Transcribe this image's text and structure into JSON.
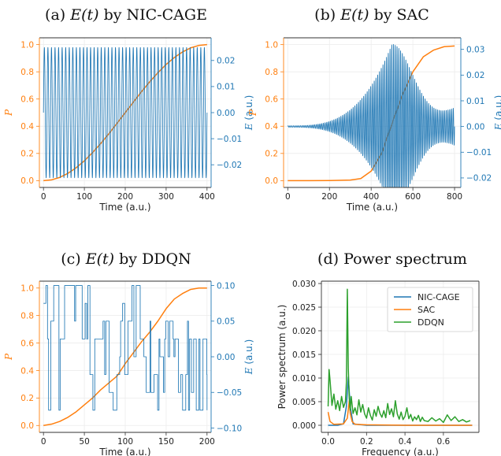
{
  "colors": {
    "p_axis": "#ff7f0e",
    "e_axis": "#1f77b4",
    "nic": "#1f77b4",
    "sac": "#ff7f0e",
    "ddqn": "#2ca02c"
  },
  "chart_data": [
    {
      "id": "a",
      "type": "line",
      "title_prefix": "(a) ",
      "title_var": "E(t)",
      "title_suffix": " by NIC-CAGE",
      "xlabel": "Time (a.u.)",
      "ylabel_left": "P",
      "ylabel_right": "E (a.u.)",
      "xlim": [
        -10,
        410
      ],
      "ylim_left": [
        -0.05,
        1.05
      ],
      "ylim_right": [
        -0.0287,
        0.0287
      ],
      "xticks": [
        0,
        100,
        200,
        300,
        400
      ],
      "yticks_left": [
        0.0,
        0.2,
        0.4,
        0.6,
        0.8,
        1.0
      ],
      "yticks_right": [
        -0.02,
        -0.01,
        0.0,
        0.01,
        0.02
      ],
      "grid": true,
      "series": [
        {
          "axis": "left",
          "color_key": "p_axis",
          "x": [
            0,
            20,
            40,
            60,
            80,
            100,
            120,
            140,
            160,
            180,
            200,
            220,
            240,
            260,
            280,
            300,
            320,
            340,
            360,
            380,
            400
          ],
          "y": [
            0.0,
            0.006,
            0.024,
            0.054,
            0.095,
            0.146,
            0.206,
            0.273,
            0.345,
            0.422,
            0.5,
            0.578,
            0.655,
            0.727,
            0.794,
            0.854,
            0.905,
            0.946,
            0.976,
            0.994,
            1.0
          ]
        },
        {
          "axis": "right",
          "color_key": "e_axis",
          "x": [
            0,
            400
          ],
          "amplitude": 0.025,
          "cycles": 46,
          "envelope": "constant"
        }
      ]
    },
    {
      "id": "b",
      "type": "line",
      "title_prefix": "(b) ",
      "title_var": "E(t)",
      "title_suffix": " by SAC",
      "xlabel": "Time (a.u.)",
      "ylabel_left": "P",
      "ylabel_right": "E (a.u.)",
      "xlim": [
        -20,
        830
      ],
      "ylim_left": [
        -0.05,
        1.05
      ],
      "ylim_right": [
        -0.0237,
        0.0345
      ],
      "xticks": [
        0,
        200,
        400,
        600,
        800
      ],
      "yticks_left": [
        0.0,
        0.2,
        0.4,
        0.6,
        0.8,
        1.0
      ],
      "yticks_right": [
        -0.02,
        -0.01,
        0.0,
        0.01,
        0.02,
        0.03
      ],
      "grid": true,
      "series": [
        {
          "axis": "left",
          "color_key": "p_axis",
          "x": [
            0,
            100,
            200,
            300,
            350,
            400,
            450,
            500,
            550,
            600,
            650,
            700,
            750,
            800
          ],
          "y": [
            0.0,
            0.0,
            0.001,
            0.004,
            0.015,
            0.07,
            0.2,
            0.42,
            0.63,
            0.8,
            0.91,
            0.96,
            0.985,
            0.99
          ]
        },
        {
          "axis": "right",
          "color_key": "e_axis",
          "x": [
            0,
            800
          ],
          "amplitude_peak": 0.032,
          "peak_at": 500,
          "amplitude_start": 0.0003,
          "amplitude_end": 0.007,
          "cycles": 95,
          "envelope": "gaussian"
        }
      ]
    },
    {
      "id": "c",
      "type": "line",
      "title_prefix": "(c) ",
      "title_var": "E(t)",
      "title_suffix": " by DDQN",
      "xlabel": "Time (a.u.)",
      "ylabel_left": "P",
      "ylabel_right": "E (a.u.)",
      "xlim": [
        -5,
        205
      ],
      "ylim_left": [
        -0.05,
        1.05
      ],
      "ylim_right": [
        -0.1061,
        0.1061
      ],
      "xticks": [
        0,
        50,
        100,
        150,
        200
      ],
      "yticks_left": [
        0.0,
        0.2,
        0.4,
        0.6,
        0.8,
        1.0
      ],
      "yticks_right": [
        -0.1,
        -0.05,
        0.0,
        0.05,
        0.1
      ],
      "grid": true,
      "series": [
        {
          "axis": "left",
          "color_key": "p_axis",
          "x": [
            0,
            10,
            20,
            30,
            40,
            50,
            60,
            70,
            80,
            90,
            100,
            110,
            120,
            130,
            140,
            150,
            160,
            170,
            180,
            190,
            200
          ],
          "y": [
            0.0,
            0.01,
            0.03,
            0.06,
            0.1,
            0.15,
            0.2,
            0.26,
            0.31,
            0.36,
            0.45,
            0.53,
            0.61,
            0.68,
            0.76,
            0.85,
            0.92,
            0.96,
            0.99,
            1.0,
            1.0
          ]
        },
        {
          "axis": "right",
          "color_key": "e_axis",
          "x": [
            0,
            200
          ],
          "levels": [
            0.1,
            0.075,
            0.05,
            0.025,
            0.0,
            -0.025,
            -0.05,
            -0.075
          ],
          "type": "piecewise-constant"
        }
      ]
    },
    {
      "id": "d",
      "type": "line",
      "title_prefix": "(d) Power spectrum",
      "title_var": "",
      "title_suffix": "",
      "xlabel": "Frequency (a.u.)",
      "ylabel_left": "Power spectrum (a.u.)",
      "ylabel_right": "",
      "xlim": [
        -0.035,
        0.785
      ],
      "ylim_left": [
        -0.0015,
        0.0305
      ],
      "ylim_right": [
        0,
        1
      ],
      "xticks": [
        0.0,
        0.2,
        0.4,
        0.6
      ],
      "yticks_left": [
        0.0,
        0.005,
        0.01,
        0.015,
        0.02,
        0.025,
        0.03
      ],
      "yticks_right": [],
      "legend": "top-right",
      "grid": true,
      "series": [
        {
          "name": "NIC-CAGE",
          "color_key": "nic",
          "x": [
            0.0,
            0.05,
            0.08,
            0.095,
            0.105,
            0.115,
            0.13,
            0.2,
            0.4,
            0.75
          ],
          "y": [
            0.0,
            0.0,
            0.0003,
            0.004,
            0.0102,
            0.004,
            0.0003,
            0.0,
            0.0,
            0.0
          ]
        },
        {
          "name": "SAC",
          "color_key": "sac",
          "x": [
            0.0,
            0.01,
            0.03,
            0.08,
            0.1,
            0.11,
            0.115,
            0.125,
            0.14,
            0.2,
            0.4,
            0.75
          ],
          "y": [
            0.0028,
            0.0008,
            0.0002,
            0.0003,
            0.0015,
            0.0052,
            0.0025,
            0.0008,
            0.0002,
            0.0001,
            0.0,
            0.0
          ]
        },
        {
          "name": "DDQN",
          "color_key": "ddqn",
          "x": [
            0.0,
            0.005,
            0.01,
            0.02,
            0.03,
            0.04,
            0.05,
            0.06,
            0.07,
            0.08,
            0.09,
            0.095,
            0.1,
            0.105,
            0.11,
            0.115,
            0.12,
            0.13,
            0.14,
            0.15,
            0.16,
            0.17,
            0.18,
            0.19,
            0.2,
            0.21,
            0.22,
            0.23,
            0.24,
            0.25,
            0.26,
            0.27,
            0.28,
            0.29,
            0.3,
            0.31,
            0.32,
            0.33,
            0.34,
            0.35,
            0.36,
            0.37,
            0.38,
            0.39,
            0.4,
            0.41,
            0.42,
            0.43,
            0.44,
            0.45,
            0.46,
            0.47,
            0.48,
            0.49,
            0.5,
            0.52,
            0.54,
            0.56,
            0.58,
            0.6,
            0.62,
            0.64,
            0.66,
            0.68,
            0.7,
            0.72,
            0.74
          ],
          "y": [
            0.004,
            0.0118,
            0.0095,
            0.0042,
            0.0066,
            0.0034,
            0.0052,
            0.0031,
            0.0061,
            0.0038,
            0.005,
            0.009,
            0.0288,
            0.012,
            0.0056,
            0.0032,
            0.0061,
            0.0025,
            0.0037,
            0.0022,
            0.0054,
            0.0028,
            0.0044,
            0.0024,
            0.0015,
            0.0037,
            0.0021,
            0.0011,
            0.0033,
            0.0019,
            0.004,
            0.0025,
            0.0017,
            0.0031,
            0.0016,
            0.0046,
            0.0023,
            0.0035,
            0.0018,
            0.0052,
            0.0024,
            0.0013,
            0.0028,
            0.0012,
            0.0019,
            0.0037,
            0.0014,
            0.0023,
            0.0009,
            0.0018,
            0.0012,
            0.0021,
            0.0008,
            0.0017,
            0.001,
            0.0008,
            0.0016,
            0.0009,
            0.0014,
            0.0006,
            0.0022,
            0.001,
            0.0018,
            0.0008,
            0.0012,
            0.0007,
            0.001
          ]
        }
      ]
    }
  ]
}
